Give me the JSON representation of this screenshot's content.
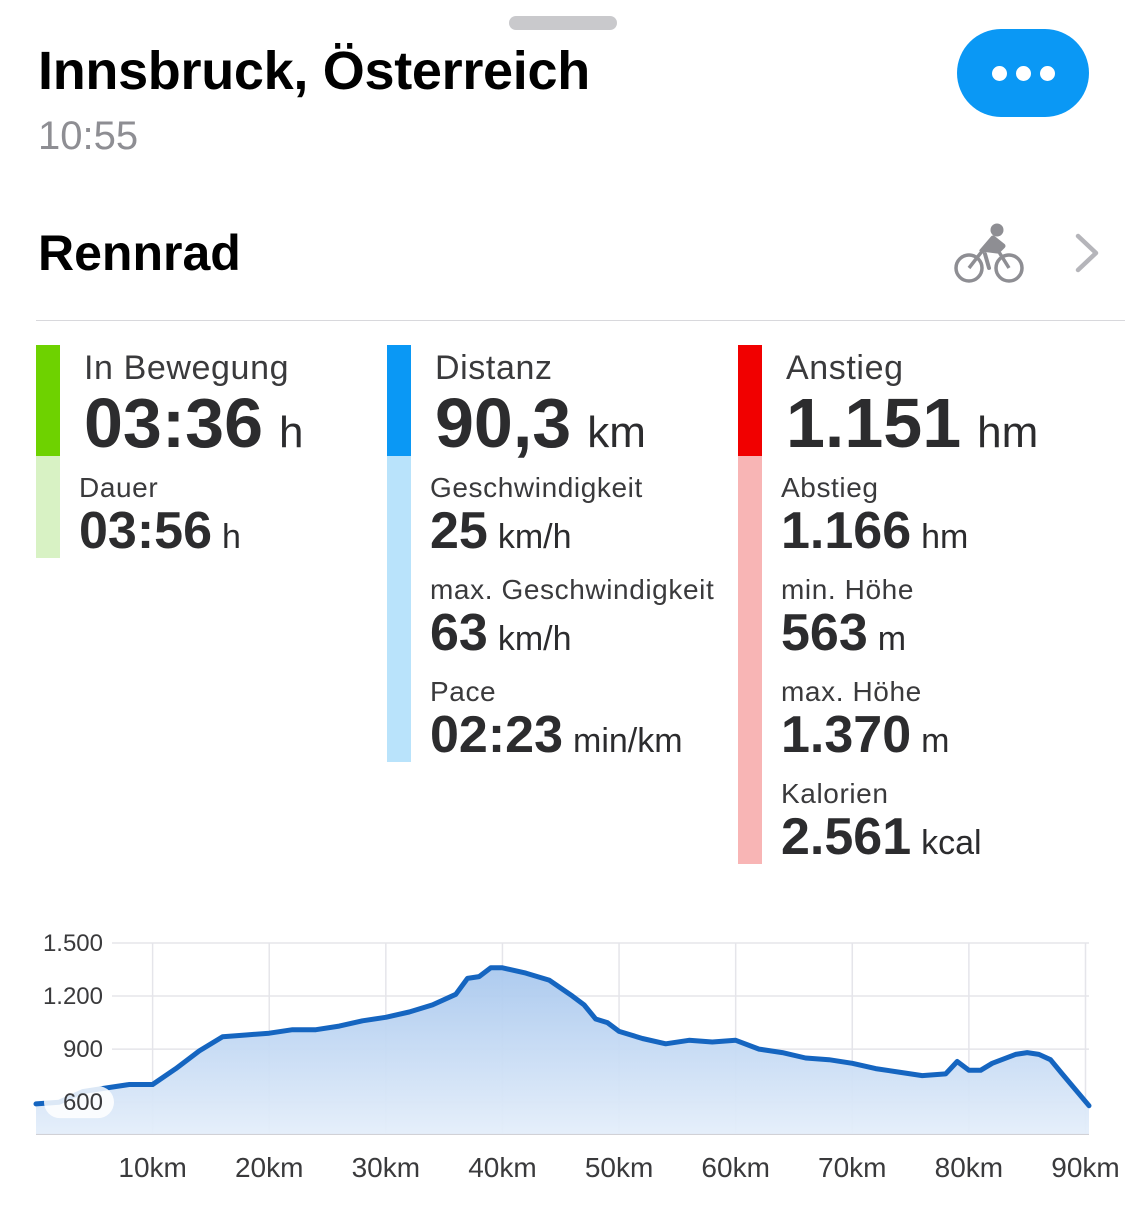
{
  "header": {
    "location": "Innsbruck, Österreich",
    "time": "10:55",
    "more_icon": "ellipsis-icon",
    "more_color": "#0a98f5"
  },
  "activity": {
    "type": "Rennrad",
    "icon": "road-bike-icon",
    "chevron_icon": "chevron-right-icon"
  },
  "colors": {
    "green": "#6ed200",
    "green_light": "#d8f2c4",
    "blue": "#0a98f5",
    "blue_light": "#b9e3fb",
    "red": "#f10000",
    "red_light": "#f8b5b5",
    "line": "#1565c0"
  },
  "stats": {
    "moving": {
      "label": "In Bewegung",
      "value": "03:36",
      "unit": "h"
    },
    "duration": {
      "label": "Dauer",
      "value": "03:56",
      "unit": "h"
    },
    "distance": {
      "label": "Distanz",
      "value": "90,3",
      "unit": "km"
    },
    "speed": {
      "label": "Geschwindigkeit",
      "value": "25",
      "unit": "km/h"
    },
    "max_speed": {
      "label": "max. Geschwindigkeit",
      "value": "63",
      "unit": "km/h"
    },
    "pace": {
      "label": "Pace",
      "value": "02:23",
      "unit": "min/km"
    },
    "ascent": {
      "label": "Anstieg",
      "value": "1.151",
      "unit": "hm"
    },
    "descent": {
      "label": "Abstieg",
      "value": "1.166",
      "unit": "hm"
    },
    "min_elev": {
      "label": "min. Höhe",
      "value": "563",
      "unit": "m"
    },
    "max_elev": {
      "label": "max. Höhe",
      "value": "1.370",
      "unit": "m"
    },
    "calories": {
      "label": "Kalorien",
      "value": "2.561",
      "unit": "kcal"
    }
  },
  "chart_data": {
    "type": "area",
    "xlabel": "",
    "ylabel": "",
    "xlim": [
      0,
      90.3
    ],
    "ylim": [
      420,
      1500
    ],
    "grid": true,
    "y_ticks": [
      600,
      900,
      1200,
      1500
    ],
    "y_tick_labels": [
      "600",
      "900",
      "1.200",
      "1.500"
    ],
    "x_ticks": [
      10,
      20,
      30,
      40,
      50,
      60,
      70,
      80,
      90
    ],
    "x_tick_labels": [
      "10km",
      "20km",
      "30km",
      "40km",
      "50km",
      "60km",
      "70km",
      "80km",
      "90km"
    ],
    "series": [
      {
        "x": [
          0,
          2,
          4,
          6,
          8,
          10,
          12,
          14,
          16,
          18,
          20,
          22,
          24,
          26,
          28,
          30,
          32,
          34,
          36,
          37,
          38,
          39,
          40,
          42,
          44,
          46,
          47,
          48,
          49,
          50,
          52,
          54,
          56,
          58,
          60,
          62,
          64,
          66,
          68,
          70,
          72,
          74,
          76,
          78,
          79,
          80,
          81,
          82,
          84,
          85,
          86,
          87,
          88,
          90.3
        ],
        "y": [
          590,
          600,
          660,
          680,
          700,
          700,
          790,
          890,
          970,
          980,
          990,
          1010,
          1010,
          1030,
          1060,
          1080,
          1110,
          1150,
          1210,
          1300,
          1310,
          1360,
          1360,
          1330,
          1290,
          1200,
          1150,
          1070,
          1050,
          1000,
          960,
          930,
          950,
          940,
          950,
          900,
          880,
          850,
          840,
          820,
          790,
          770,
          750,
          760,
          830,
          780,
          780,
          820,
          870,
          880,
          870,
          840,
          760,
          580
        ]
      }
    ]
  }
}
